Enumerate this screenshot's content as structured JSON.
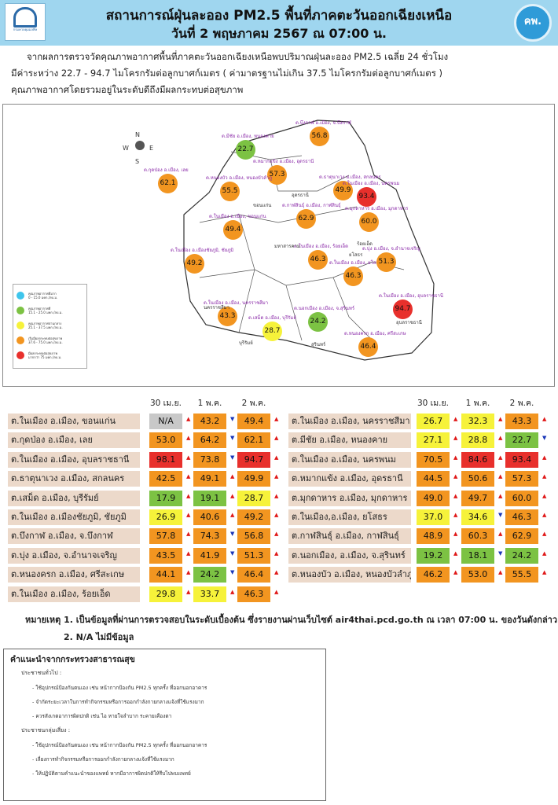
{
  "header": {
    "title": "สถานการณ์ฝุ่นละออง PM2.5 พื้นที่ภาคตะวันออกเฉียงเหนือ",
    "date": "วันที่ 2 พฤษภาคม 2567 ณ 07:00 น.",
    "logo_left": "กรมควบคุมมลพิษ",
    "logo_right": "คพ."
  },
  "intro": {
    "line1": "จากผลการตรวจวัดคุณภาพอากาศพื้นที่ภาคตะวันออกเฉียงเหนือพบปริมาณฝุ่นละออง PM2.5 เฉลี่ย 24 ชั่วโมง",
    "line2": "มีค่าระหว่าง 22.7 - 94.7 ไมโครกรัมต่อลูกบาศก์เมตร ( ค่ามาตรฐานไม่เกิน 37.5 ไมโครกรัมต่อลูกบาศก์เมตร )",
    "line3": "คุณภาพอากาศโดยรวมอยู่ในระดับดีถึงมีผลกระทบต่อสุขภาพ"
  },
  "compass": {
    "n": "N",
    "s": "S",
    "e": "E",
    "w": "W"
  },
  "colors": {
    "verygood": "#3ec5ec",
    "good": "#7cc243",
    "moderate": "#f6f23a",
    "unhealthy": "#f29520",
    "veryunhealthy": "#e8302c"
  },
  "legend": [
    {
      "label": "คุณภาพอากาศดีมาก",
      "range": "0 - 15.0 มคก./ลบ.ม.",
      "color": "#3ec5ec"
    },
    {
      "label": "คุณภาพอากาศดี",
      "range": "15.1 - 25.0 มคก./ลบ.ม.",
      "color": "#7cc243"
    },
    {
      "label": "คุณภาพอากาศปานกลาง",
      "range": "25.1 - 37.5 มคก./ลบ.ม.",
      "color": "#f6f23a"
    },
    {
      "label": "เริ่มมีผลกระทบต่อสุขภาพ",
      "range": "37.6 - 75.0 มคก./ลบ.ม.",
      "color": "#f29520"
    },
    {
      "label": "มีผลกระทบต่อสุขภาพ",
      "range": "มากกว่า 75 มคก./ลบ.ม.",
      "color": "#e8302c"
    }
  ],
  "map_points": [
    {
      "label": "ต.มีชัย อ.เมือง, หนองคาย",
      "value": "22.7",
      "color": "#7cc243"
    },
    {
      "label": "ต.บึงกาฬ อ.เมือง, จ.บึงกาฬ",
      "value": "56.8",
      "color": "#f29520"
    },
    {
      "label": "ต.กุดป่อง อ.เมือง, เลย",
      "value": "62.1",
      "color": "#f29520"
    },
    {
      "label": "ต.หมากแข้ง อ.เมือง, อุดรธานี",
      "value": "57.3",
      "color": "#f29520"
    },
    {
      "label": "ต.ธาตุนาเวง อ.เมือง, สกลนคร",
      "value": "49.9",
      "color": "#f29520"
    },
    {
      "label": "ต.ในเมือง อ.เมือง, นครพนม",
      "value": "93.4",
      "color": "#e8302c"
    },
    {
      "label": "ต.หนองบัว อ.เมือง, หนองบัวลำภู",
      "value": "55.5",
      "color": "#f29520"
    },
    {
      "label": "ต.กาฬสินธุ์ อ.เมือง, กาฬสินธุ์",
      "value": "62.9",
      "color": "#f29520"
    },
    {
      "label": "ต.มุกดาหาร อ.เมือง, มุกดาหาร",
      "value": "60.0",
      "color": "#f29520"
    },
    {
      "label": "ต.ในเมือง อ.เมือง, ขอนแก่น",
      "value": "49.4",
      "color": "#f29520"
    },
    {
      "label": "ต.ในเมือง อ.เมืองชัยภูมิ, ชัยภูมิ",
      "value": "49.2",
      "color": "#f29520"
    },
    {
      "label": "ต.ในเมือง อ.เมือง, ร้อยเอ็ด",
      "value": "46.3",
      "color": "#f29520"
    },
    {
      "label": "ต.ในเมือง อ.เมือง, ยโสธร",
      "value": "46.3",
      "color": "#f29520"
    },
    {
      "label": "ต.บุ่ง อ.เมือง, จ.อำนาจเจริญ",
      "value": "51.3",
      "color": "#f29520"
    },
    {
      "label": "ต.ในเมือง อ.เมือง, นครราชสีมา",
      "value": "43.3",
      "color": "#f29520"
    },
    {
      "label": "ต.เสม็ด อ.เมือง, บุรีรัมย์",
      "value": "28.7",
      "color": "#f6f23a"
    },
    {
      "label": "ต.นอกเมือง อ.เมือง, จ.สุรินทร์",
      "value": "24.2",
      "color": "#7cc243"
    },
    {
      "label": "ต.ในเมือง อ.เมือง, อุบลราชธานี",
      "value": "94.7",
      "color": "#e8302c"
    },
    {
      "label": "ต.หนองครก อ.เมือง, ศรีสะเกษ",
      "value": "46.4",
      "color": "#f29520"
    }
  ],
  "map_provinces": [
    "ขอนแก่น",
    "ร้อยเอ็ด",
    "มหาสารคาม",
    "ยโสธร",
    "อุดรธานี",
    "นครราชสีมา",
    "สุรินทร์",
    "อุบลราชธานี",
    "บุรีรัมย์"
  ],
  "table": {
    "headers": [
      "30 เม.ย.",
      "1 พ.ค.",
      "2 พ.ค."
    ],
    "left": [
      {
        "station": "ต.ในเมือง อ.เมือง, ขอนแก่น",
        "v": [
          "N/A",
          "43.2",
          "49.4"
        ],
        "c": [
          "#c8c8c8",
          "#f29520",
          "#f29520"
        ],
        "a": [
          "up",
          "dn",
          "up"
        ]
      },
      {
        "station": "ต.กุดป่อง อ.เมือง, เลย",
        "v": [
          "53.0",
          "64.2",
          "62.1"
        ],
        "c": [
          "#f29520",
          "#f29520",
          "#f29520"
        ],
        "a": [
          "up",
          "dn",
          "up"
        ]
      },
      {
        "station": "ต.ในเมือง อ.เมือง, อุบลราชธานี",
        "v": [
          "98.1",
          "73.8",
          "94.7"
        ],
        "c": [
          "#e8302c",
          "#f29520",
          "#e8302c"
        ],
        "a": [
          "up",
          "dn",
          "up"
        ]
      },
      {
        "station": "ต.ธาตุนาเวง อ.เมือง, สกลนคร",
        "v": [
          "42.5",
          "49.1",
          "49.9"
        ],
        "c": [
          "#f29520",
          "#f29520",
          "#f29520"
        ],
        "a": [
          "up",
          "up",
          "up"
        ]
      },
      {
        "station": "ต.เสม็ด อ.เมือง, บุรีรัมย์",
        "v": [
          "17.9",
          "19.1",
          "28.7"
        ],
        "c": [
          "#7cc243",
          "#7cc243",
          "#f6f23a"
        ],
        "a": [
          "up",
          "up",
          "up"
        ]
      },
      {
        "station": "ต.ในเมือง อ.เมืองชัยภูมิ, ชัยภูมิ",
        "v": [
          "26.9",
          "40.6",
          "49.2"
        ],
        "c": [
          "#f6f23a",
          "#f29520",
          "#f29520"
        ],
        "a": [
          "up",
          "up",
          "up"
        ]
      },
      {
        "station": "ต.บึงกาฬ อ.เมือง, จ.บึงกาฬ",
        "v": [
          "57.8",
          "74.3",
          "56.8"
        ],
        "c": [
          "#f29520",
          "#f29520",
          "#f29520"
        ],
        "a": [
          "up",
          "dn",
          "up"
        ]
      },
      {
        "station": "ต.บุ่ง อ.เมือง, จ.อำนาจเจริญ",
        "v": [
          "43.5",
          "41.9",
          "51.3"
        ],
        "c": [
          "#f29520",
          "#f29520",
          "#f29520"
        ],
        "a": [
          "up",
          "dn",
          "up"
        ]
      },
      {
        "station": "ต.หนองครก อ.เมือง, ศรีสะเกษ",
        "v": [
          "44.1",
          "24.2",
          "46.4"
        ],
        "c": [
          "#f29520",
          "#7cc243",
          "#f29520"
        ],
        "a": [
          "up",
          "dn",
          "up"
        ]
      },
      {
        "station": "ต.ในเมือง อ.เมือง, ร้อยเอ็ด",
        "v": [
          "29.8",
          "33.7",
          "46.3"
        ],
        "c": [
          "#f6f23a",
          "#f6f23a",
          "#f29520"
        ],
        "a": [
          "up",
          "up",
          "up"
        ]
      }
    ],
    "right": [
      {
        "station": "ต.ในเมือง อ.เมือง, นครราชสีมา",
        "v": [
          "26.7",
          "32.3",
          "43.3"
        ],
        "c": [
          "#f6f23a",
          "#f6f23a",
          "#f29520"
        ],
        "a": [
          "up",
          "up",
          "up"
        ]
      },
      {
        "station": "ต.มีชัย อ.เมือง, หนองคาย",
        "v": [
          "27.1",
          "28.8",
          "22.7"
        ],
        "c": [
          "#f6f23a",
          "#f6f23a",
          "#7cc243"
        ],
        "a": [
          "up",
          "up",
          "dn"
        ]
      },
      {
        "station": "ต.ในเมือง อ.เมือง, นครพนม",
        "v": [
          "70.5",
          "84.6",
          "93.4"
        ],
        "c": [
          "#f29520",
          "#e8302c",
          "#e8302c"
        ],
        "a": [
          "up",
          "up",
          "up"
        ]
      },
      {
        "station": "ต.หมากแข้ง อ.เมือง, อุดรธานี",
        "v": [
          "44.5",
          "50.6",
          "57.3"
        ],
        "c": [
          "#f29520",
          "#f29520",
          "#f29520"
        ],
        "a": [
          "up",
          "up",
          "up"
        ]
      },
      {
        "station": "ต.มุกดาหาร อ.เมือง, มุกดาหาร",
        "v": [
          "49.0",
          "49.7",
          "60.0"
        ],
        "c": [
          "#f29520",
          "#f29520",
          "#f29520"
        ],
        "a": [
          "up",
          "up",
          "up"
        ]
      },
      {
        "station": "ต.ในเมือง,อ.เมือง, ยโสธร",
        "v": [
          "37.0",
          "34.6",
          "46.3"
        ],
        "c": [
          "#f6f23a",
          "#f6f23a",
          "#f29520"
        ],
        "a": [
          "up",
          "dn",
          "up"
        ]
      },
      {
        "station": "ต.กาฬสินธุ์ อ.เมือง, กาฬสินธุ์",
        "v": [
          "48.9",
          "60.3",
          "62.9"
        ],
        "c": [
          "#f29520",
          "#f29520",
          "#f29520"
        ],
        "a": [
          "up",
          "up",
          "up"
        ]
      },
      {
        "station": "ต.นอกเมือง, อ.เมือง, จ.สุรินทร์",
        "v": [
          "19.2",
          "18.1",
          "24.2"
        ],
        "c": [
          "#7cc243",
          "#7cc243",
          "#7cc243"
        ],
        "a": [
          "up",
          "dn",
          "up"
        ]
      },
      {
        "station": "ต.หนองบัว อ.เมือง, หนองบัวลำภู",
        "v": [
          "46.2",
          "53.0",
          "55.5"
        ],
        "c": [
          "#f29520",
          "#f29520",
          "#f29520"
        ],
        "a": [
          "up",
          "up",
          "up"
        ]
      }
    ]
  },
  "notes": {
    "n1": "หมายเหตุ 1. เป็นข้อมูลที่ผ่านการตรวจสอบในระดับเบื้องต้น ซึ่งรายงานผ่านเว็บไซต์ air4thai.pcd.go.th ณ เวลา 07:00 น. ของวันดังกล่าว",
    "n2": "2. N/A ไม่มีข้อมูล"
  },
  "advice": {
    "title": "คำแนะนำจากกระทรวงสาธารณสุข",
    "g1": "ประชาชนทั่วไป :",
    "g1_items": [
      "- ใช้อุปกรณ์ป้องกันตนเอง เช่น หน้ากากป้องกัน PM2.5 ทุกครั้ง  ที่ออกนอกอาคาร",
      "- จำกัดระยะเวลาในการทำกิจกรรมหรือการออกกำลังกายกลางแจ้งที่ใช้แรงมาก",
      "- ควรสังเกตอาการผิดปกติ เช่น ไอ หายใจลำบาก ระคายเคืองตา"
    ],
    "g2": "ประชาชนกลุ่มเสี่ยง :",
    "g2_items": [
      "- ใช้อุปกรณ์ป้องกันตนเอง เช่น หน้ากากป้องกัน PM2.5 ทุกครั้ง   ที่ออกนอกอาคาร",
      "- เลี่ยงการทำกิจกรรมหรือการออกกำลังกายกลางแจ้งที่ใช้แรงมาก",
      "- ให้ปฏิบัติตามคำแนะนำของแพทย์ หากมีอาการผิดปกติให้รีบไปพบแพทย์"
    ]
  }
}
